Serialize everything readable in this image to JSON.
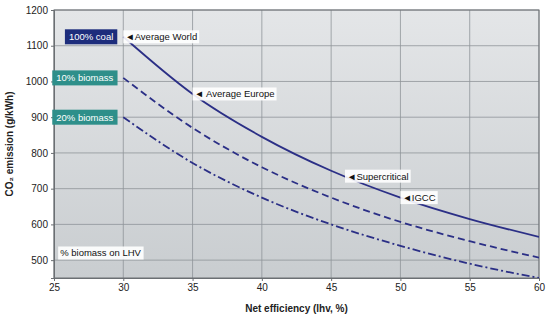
{
  "chart_data": {
    "type": "line",
    "x_label": "Net efficiency (lhv, %)",
    "y_label": "CO₂ emission (g/kWh)",
    "x": [
      30,
      35,
      40,
      45,
      50,
      55,
      60
    ],
    "series": [
      {
        "name": "100% coal",
        "color": "#2b2f86",
        "line_style": "solid",
        "values": [
          1125,
          965,
          845,
          750,
          675,
          615,
          565
        ]
      },
      {
        "name": "10% biomass",
        "color": "#2b2f86",
        "line_style": "dashed",
        "values": [
          1010,
          870,
          760,
          675,
          607,
          553,
          507
        ]
      },
      {
        "name": "20% biomass",
        "color": "#2b2f86",
        "line_style": "dashdot",
        "values": [
          900,
          772,
          675,
          600,
          540,
          490,
          450
        ]
      }
    ],
    "annotations": [
      {
        "text": "◄Average World",
        "x": 30,
        "y": 1125
      },
      {
        "text": "◄ Average Europe",
        "x": 35,
        "y": 965
      },
      {
        "text": "◄Supercritical",
        "x": 46,
        "y": 735
      },
      {
        "text": "◄IGCC",
        "x": 50,
        "y": 675
      },
      {
        "text": "% biomass on LHV",
        "x": 25.3,
        "y": 520
      }
    ],
    "xlim": [
      25,
      60
    ],
    "xticks": [
      25,
      30,
      35,
      40,
      45,
      50,
      55,
      60
    ],
    "ylim": [
      450,
      1200
    ],
    "yticks": [
      500,
      600,
      700,
      800,
      900,
      1000,
      1100,
      1200
    ],
    "grid": true
  }
}
